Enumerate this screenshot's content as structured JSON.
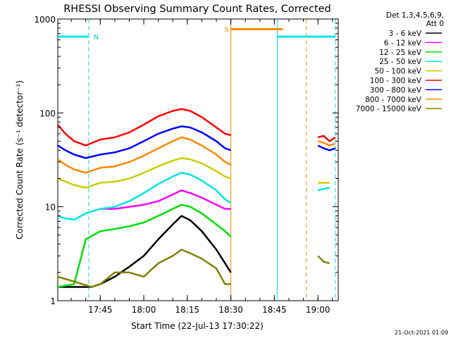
{
  "chart_data": {
    "type": "line",
    "title": "RHESSI Observing Summary Count Rates, Corrected",
    "xlabel": "Start Time (22-Jul-13 17:30:22)",
    "ylabel": "Corrected Count Rate (s⁻¹ detector⁻¹)",
    "y_scale": "log",
    "ylim": [
      1,
      1000
    ],
    "xlim": [
      "17:30:22",
      "19:07:00"
    ],
    "x_ticks": [
      "17:45",
      "18:00",
      "18:15",
      "18:30",
      "18:45",
      "19:00"
    ],
    "y_ticks": [
      "1",
      "10",
      "100",
      "1000"
    ],
    "legend_header": [
      "Det 1,3,4,5,6,9,",
      "Att 0"
    ],
    "legend_position": "right",
    "footer": "21-Oct-2021 01:09",
    "series": [
      {
        "name": "3 - 6 keV",
        "color": "#000000",
        "segments": [
          {
            "x": [
              "17:30:22",
              "17:36",
              "17:42",
              "17:45",
              "17:50",
              "17:55",
              "18:00",
              "18:05",
              "18:10",
              "18:13",
              "18:16",
              "18:20",
              "18:25",
              "18:28",
              "18:30"
            ],
            "y": [
              1.4,
              1.4,
              1.4,
              1.5,
              1.8,
              2.3,
              3.0,
              4.5,
              6.5,
              8.0,
              7.2,
              5.5,
              3.5,
              2.5,
              2.0
            ]
          }
        ]
      },
      {
        "name": "6 - 12 keV",
        "color": "#ff00ff",
        "segments": [
          {
            "x": [
              "17:45",
              "17:50",
              "17:55",
              "18:00",
              "18:05",
              "18:10",
              "18:13",
              "18:16",
              "18:20",
              "18:25",
              "18:28",
              "18:30"
            ],
            "y": [
              9.5,
              9.5,
              10,
              10.5,
              11.5,
              13.5,
              15,
              14,
              12.5,
              10.5,
              9.5,
              9.5
            ]
          }
        ]
      },
      {
        "name": "12 - 25 keV",
        "color": "#00dd00",
        "segments": [
          {
            "x": [
              "17:30:22",
              "17:36",
              "17:40",
              "17:45",
              "17:50",
              "17:55",
              "18:00",
              "18:05",
              "18:10",
              "18:13",
              "18:16",
              "18:20",
              "18:25",
              "18:28",
              "18:30"
            ],
            "y": [
              1.4,
              1.5,
              4.5,
              5.5,
              5.8,
              6.2,
              6.8,
              8.0,
              9.5,
              10.5,
              10,
              8.5,
              6.5,
              5.5,
              4.8
            ]
          }
        ]
      },
      {
        "name": "25 - 50 keV",
        "color": "#00e5e5",
        "segments": [
          {
            "x": [
              "17:30:22",
              "17:33",
              "17:36",
              "17:40",
              "17:45",
              "17:50",
              "17:55",
              "18:00",
              "18:05",
              "18:10",
              "18:13",
              "18:16",
              "18:20",
              "18:25",
              "18:28",
              "18:30"
            ],
            "y": [
              8,
              7.5,
              7.3,
              8.5,
              9.5,
              10,
              11.5,
              14,
              17.5,
              21,
              23,
              22,
              19,
              15,
              12,
              11
            ]
          },
          {
            "x": [
              "19:00",
              "19:02",
              "19:04"
            ],
            "y": [
              15,
              15.5,
              16
            ]
          }
        ]
      },
      {
        "name": "50 - 100 keV",
        "color": "#cccc00",
        "segments": [
          {
            "x": [
              "17:30:22",
              "17:36",
              "17:40",
              "17:45",
              "17:50",
              "17:55",
              "18:00",
              "18:05",
              "18:10",
              "18:13",
              "18:16",
              "18:20",
              "18:25",
              "18:28",
              "18:30"
            ],
            "y": [
              20,
              17,
              16,
              18,
              18.5,
              20,
              23,
              27,
              31,
              33,
              32,
              29,
              24,
              21,
              20
            ]
          },
          {
            "x": [
              "19:00",
              "19:02",
              "19:04"
            ],
            "y": [
              18,
              18,
              18
            ]
          }
        ]
      },
      {
        "name": "100 - 300 keV",
        "color": "#ff0000",
        "segments": [
          {
            "x": [
              "17:30:22",
              "17:33",
              "17:36",
              "17:40",
              "17:45",
              "17:50",
              "17:55",
              "18:00",
              "18:05",
              "18:10",
              "18:13",
              "18:16",
              "18:20",
              "18:25",
              "18:28",
              "18:30"
            ],
            "y": [
              75,
              60,
              50,
              45,
              52,
              55,
              62,
              75,
              92,
              105,
              110,
              105,
              90,
              70,
              60,
              58
            ]
          },
          {
            "x": [
              "19:00",
              "19:02",
              "19:04",
              "19:06"
            ],
            "y": [
              55,
              57,
              50,
              55
            ]
          }
        ]
      },
      {
        "name": "300 - 800 keV",
        "color": "#0000ff",
        "segments": [
          {
            "x": [
              "17:30:22",
              "17:33",
              "17:36",
              "17:40",
              "17:45",
              "17:50",
              "17:55",
              "18:00",
              "18:05",
              "18:10",
              "18:13",
              "18:16",
              "18:20",
              "18:25",
              "18:28",
              "18:30"
            ],
            "y": [
              45,
              40,
              36,
              33,
              36,
              38,
              42,
              50,
              60,
              68,
              72,
              70,
              62,
              50,
              42,
              40
            ]
          },
          {
            "x": [
              "19:00",
              "19:02",
              "19:04",
              "19:06"
            ],
            "y": [
              45,
              42,
              40,
              42
            ]
          }
        ]
      },
      {
        "name": "800 - 7000 keV",
        "color": "#ff8800",
        "segments": [
          {
            "x": [
              "17:30:22",
              "17:33",
              "17:36",
              "17:40",
              "17:45",
              "17:50",
              "17:55",
              "18:00",
              "18:05",
              "18:10",
              "18:13",
              "18:16",
              "18:20",
              "18:25",
              "18:28",
              "18:30"
            ],
            "y": [
              32,
              28,
              25,
              23,
              26,
              27,
              30,
              35,
              42,
              50,
              55,
              52,
              45,
              36,
              30,
              28
            ]
          },
          {
            "x": [
              "19:00",
              "19:02",
              "19:04",
              "19:06"
            ],
            "y": [
              50,
              48,
              45,
              47
            ]
          }
        ]
      },
      {
        "name": "7000 - 15000 keV",
        "color": "#808000",
        "segments": [
          {
            "x": [
              "17:30:22",
              "17:36",
              "17:42",
              "17:45",
              "17:50",
              "17:55",
              "18:00",
              "18:05",
              "18:10",
              "18:13",
              "18:16",
              "18:20",
              "18:25",
              "18:28",
              "18:30"
            ],
            "y": [
              1.8,
              1.6,
              1.4,
              1.5,
              2.0,
              2.0,
              1.8,
              2.5,
              3.0,
              3.5,
              3.2,
              2.8,
              2.2,
              1.5,
              1.5
            ]
          },
          {
            "x": [
              "19:00",
              "19:02",
              "19:04"
            ],
            "y": [
              3.0,
              2.6,
              2.5
            ]
          }
        ]
      }
    ],
    "annotations": {
      "night_bars": [
        {
          "x0": "17:30:22",
          "x1": "17:41",
          "y": 650
        },
        {
          "x0": "18:46",
          "x1": "19:06",
          "y": 650
        }
      ],
      "night_label": {
        "text": "N",
        "x": "17:41"
      },
      "saa_bar": {
        "x0": "18:30",
        "x1": "18:48",
        "y": 780
      },
      "saa_label": {
        "text": "S",
        "x": "18:30"
      },
      "solid_lines": [
        {
          "x": "18:30",
          "color": "#ff8800"
        },
        {
          "x": "18:46",
          "color": "#00e5e5"
        }
      ],
      "dashed_lines": [
        {
          "x": "17:41",
          "color": "#00e5e5"
        },
        {
          "x": "18:56",
          "color": "#ff8800"
        },
        {
          "x": "19:06",
          "color": "#00e5e5"
        }
      ]
    }
  }
}
